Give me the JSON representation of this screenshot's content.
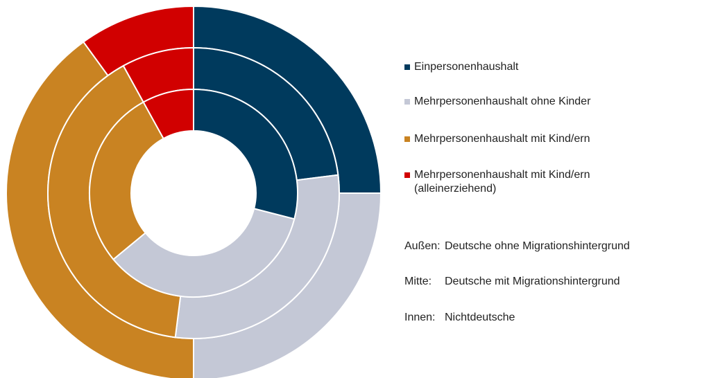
{
  "chart_data": {
    "type": "donut",
    "categories": [
      "Einpersonenhaushalt",
      "Mehrpersonenhaushalt ohne Kinder",
      "Mehrpersonenhaushalt mit Kind/ern",
      "Mehrpersonenhaushalt mit Kind/ern (alleinerziehend)"
    ],
    "colors": [
      "#003a5d",
      "#c4c8d6",
      "#c98322",
      "#d10000"
    ],
    "series": [
      {
        "label": "Außen:",
        "name": "Deutsche ohne Migrationshintergrund",
        "values": [
          25,
          25,
          40,
          10
        ]
      },
      {
        "label": "Mitte:",
        "name": "Deutsche mit Migrationshintergrund",
        "values": [
          23,
          29,
          40,
          8
        ]
      },
      {
        "label": "Innen:",
        "name": "Nichtdeutsche",
        "values": [
          29,
          35,
          28,
          8
        ]
      }
    ]
  }
}
